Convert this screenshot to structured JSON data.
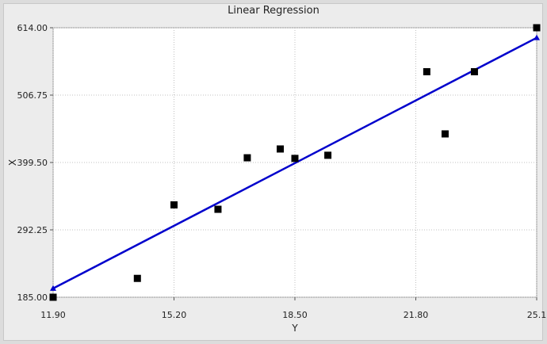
{
  "chart_data": {
    "type": "scatter",
    "title": "Linear Regression",
    "xlabel": "Y",
    "ylabel": "X",
    "xlim": [
      11.9,
      25.1
    ],
    "ylim": [
      185.0,
      614.0
    ],
    "x_ticks": [
      "11.90",
      "15.20",
      "18.50",
      "21.80",
      "25.1"
    ],
    "y_ticks": [
      "614.00",
      "506.75",
      "399.50",
      "292.25",
      "185.00"
    ],
    "grid": true,
    "points": [
      {
        "x": 11.9,
        "y": 185
      },
      {
        "x": 14.2,
        "y": 215
      },
      {
        "x": 15.2,
        "y": 332
      },
      {
        "x": 16.4,
        "y": 325
      },
      {
        "x": 17.2,
        "y": 407
      },
      {
        "x": 18.1,
        "y": 421
      },
      {
        "x": 18.5,
        "y": 406
      },
      {
        "x": 19.4,
        "y": 411
      },
      {
        "x": 22.1,
        "y": 544
      },
      {
        "x": 22.6,
        "y": 445
      },
      {
        "x": 23.4,
        "y": 544
      },
      {
        "x": 25.1,
        "y": 614
      }
    ],
    "regression_line": {
      "x": [
        11.9,
        25.1
      ],
      "y": [
        199,
        598
      ]
    },
    "colors": {
      "points": "#000000",
      "line": "#0000cc",
      "plot_bg": "#ffffff",
      "grid": "#c0c0c0"
    }
  }
}
